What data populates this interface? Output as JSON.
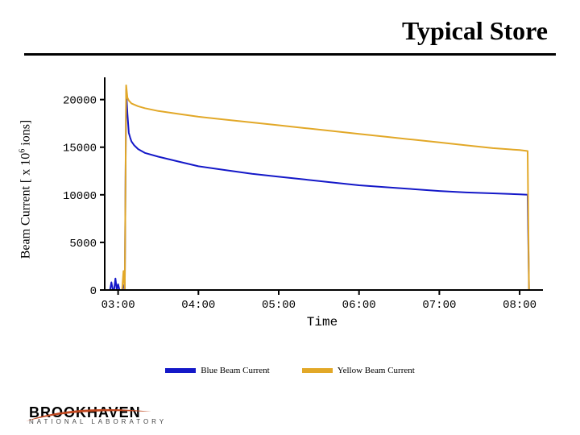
{
  "title": "Typical Store",
  "ylabel_prefix": "Beam Current [ x 10",
  "ylabel_sup": "6",
  "ylabel_suffix": " ions]",
  "xlabel": "Time",
  "chart": {
    "type": "line",
    "background_color": "#ffffff",
    "axis_color": "#000000",
    "axis_width": 2,
    "xlim": [
      "02:50",
      "08:15"
    ],
    "plot_x_min": 170,
    "plot_x_max": 495,
    "ylim": [
      0,
      22000
    ],
    "yticks": [
      {
        "v": 0,
        "label": "0"
      },
      {
        "v": 5000,
        "label": "5000"
      },
      {
        "v": 10000,
        "label": "10000"
      },
      {
        "v": 15000,
        "label": "15000"
      },
      {
        "v": 20000,
        "label": "20000"
      }
    ],
    "xticks": [
      {
        "v": 180,
        "label": "03:00"
      },
      {
        "v": 240,
        "label": "04:00"
      },
      {
        "v": 300,
        "label": "05:00"
      },
      {
        "v": 360,
        "label": "06:00"
      },
      {
        "v": 420,
        "label": "07:00"
      },
      {
        "v": 480,
        "label": "08:00"
      }
    ],
    "series": [
      {
        "name": "blue",
        "color": "#1418c8",
        "width": 2,
        "points": [
          [
            170,
            0
          ],
          [
            174,
            0
          ],
          [
            175,
            800
          ],
          [
            176,
            0
          ],
          [
            177,
            0
          ],
          [
            178,
            1200
          ],
          [
            179,
            0
          ],
          [
            180,
            600
          ],
          [
            181,
            0
          ],
          [
            182,
            0
          ],
          [
            183,
            0
          ],
          [
            184,
            500
          ],
          [
            185,
            0
          ],
          [
            186,
            21000
          ],
          [
            187,
            18500
          ],
          [
            188,
            16500
          ],
          [
            189,
            16000
          ],
          [
            190,
            15600
          ],
          [
            192,
            15200
          ],
          [
            195,
            14800
          ],
          [
            200,
            14400
          ],
          [
            210,
            14000
          ],
          [
            225,
            13500
          ],
          [
            240,
            13000
          ],
          [
            260,
            12600
          ],
          [
            280,
            12200
          ],
          [
            300,
            11900
          ],
          [
            320,
            11600
          ],
          [
            340,
            11300
          ],
          [
            360,
            11000
          ],
          [
            380,
            10800
          ],
          [
            400,
            10600
          ],
          [
            420,
            10400
          ],
          [
            440,
            10250
          ],
          [
            460,
            10150
          ],
          [
            480,
            10050
          ],
          [
            486,
            10000
          ],
          [
            487,
            0
          ],
          [
            495,
            0
          ]
        ]
      },
      {
        "name": "yellow",
        "color": "#e2a828",
        "width": 2,
        "points": [
          [
            170,
            0
          ],
          [
            183,
            0
          ],
          [
            184,
            2000
          ],
          [
            185,
            0
          ],
          [
            186,
            21500
          ],
          [
            187,
            20200
          ],
          [
            188,
            19900
          ],
          [
            190,
            19600
          ],
          [
            195,
            19300
          ],
          [
            200,
            19100
          ],
          [
            210,
            18800
          ],
          [
            225,
            18500
          ],
          [
            240,
            18200
          ],
          [
            260,
            17900
          ],
          [
            280,
            17600
          ],
          [
            300,
            17300
          ],
          [
            320,
            17000
          ],
          [
            340,
            16700
          ],
          [
            360,
            16400
          ],
          [
            380,
            16100
          ],
          [
            400,
            15800
          ],
          [
            420,
            15500
          ],
          [
            440,
            15200
          ],
          [
            460,
            14900
          ],
          [
            480,
            14700
          ],
          [
            486,
            14600
          ],
          [
            487,
            0
          ],
          [
            495,
            0
          ]
        ]
      }
    ]
  },
  "legend": [
    {
      "label": "Blue Beam Current",
      "color": "#1418c8"
    },
    {
      "label": "Yellow Beam Current",
      "color": "#e2a828"
    }
  ],
  "logo": {
    "line1": "BROOKHAVEN",
    "line2": "NATIONAL LABORATORY",
    "swoosh_color": "#c04820"
  }
}
